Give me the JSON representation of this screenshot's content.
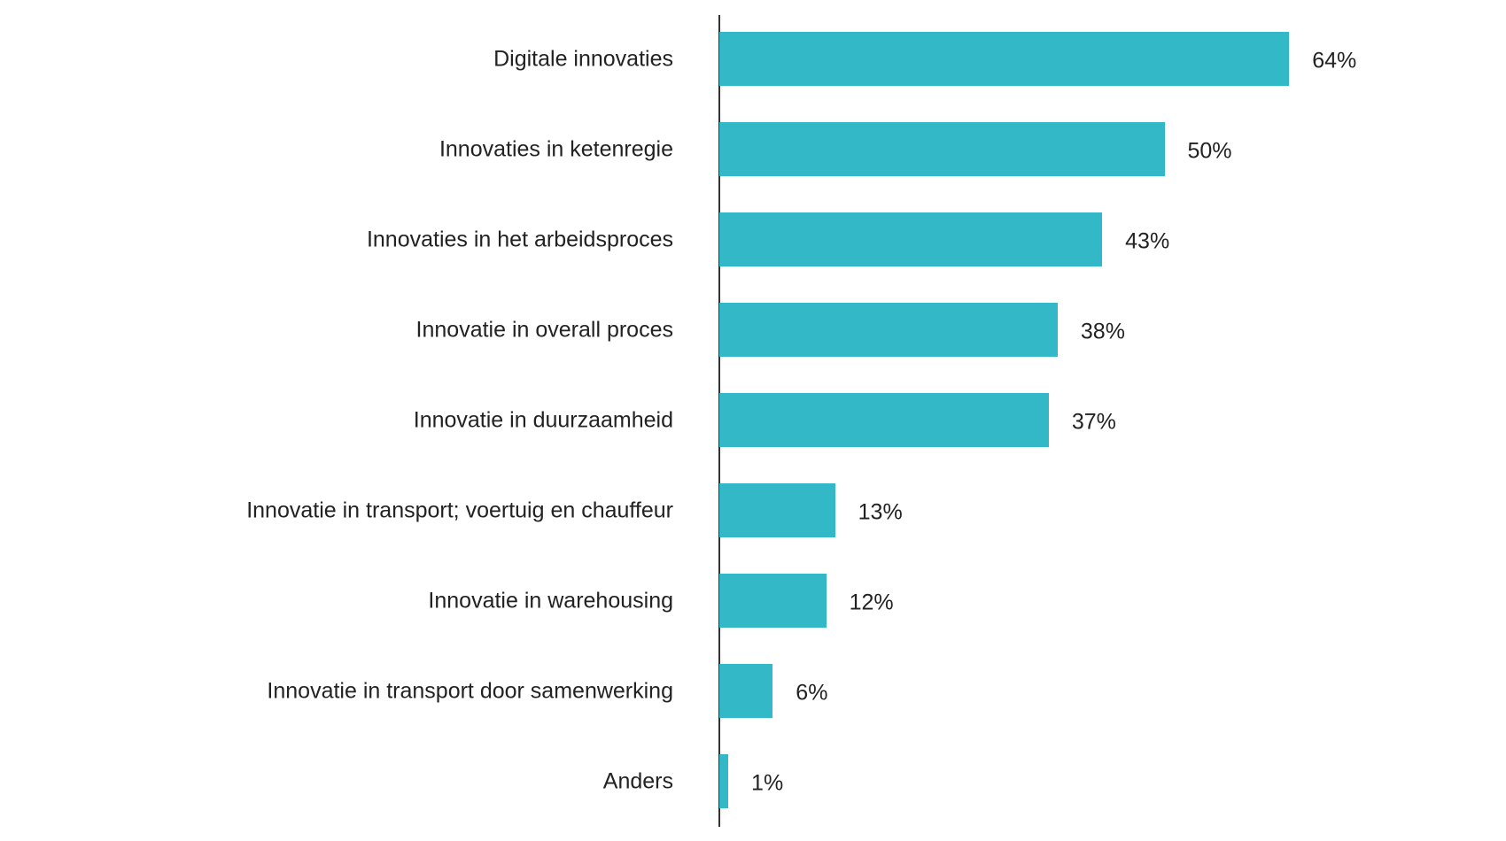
{
  "chart_data": {
    "type": "bar",
    "orientation": "horizontal",
    "title": "",
    "xlabel": "",
    "ylabel": "",
    "xlim": [
      0,
      64
    ],
    "grid": false,
    "bar_color": "#33B8C7",
    "categories": [
      "Digitale innovaties",
      "Innovaties in ketenregie",
      "Innovaties in het arbeidsproces",
      "Innovatie in overall proces",
      "Innovatie in duurzaamheid",
      "Innovatie in transport; voertuig en chauffeur",
      "Innovatie in warehousing",
      "Innovatie in transport door samenwerking",
      "Anders"
    ],
    "values": [
      64,
      50,
      43,
      38,
      37,
      13,
      12,
      6,
      1
    ],
    "data_labels": [
      "64%",
      "50%",
      "43%",
      "38%",
      "37%",
      "13%",
      "12%",
      "6%",
      "1%"
    ]
  }
}
